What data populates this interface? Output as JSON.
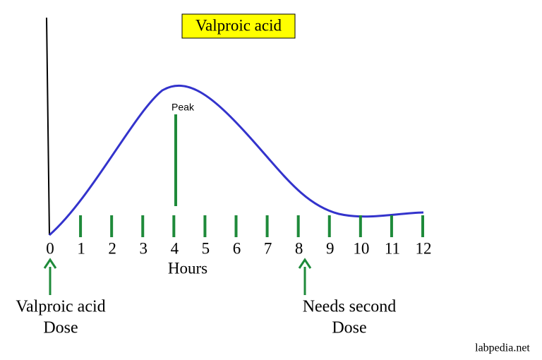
{
  "title": "Valproic acid",
  "peak_label": "Peak",
  "hour_labels": [
    0,
    1,
    2,
    3,
    4,
    5,
    6,
    7,
    8,
    9,
    10,
    11,
    12
  ],
  "x_axis_label": "Hours",
  "annotations": [
    {
      "lines": [
        "Valproic acid",
        "Dose"
      ]
    },
    {
      "lines": [
        "Needs second",
        "Dose"
      ]
    }
  ],
  "watermark": "labpedia.net"
}
